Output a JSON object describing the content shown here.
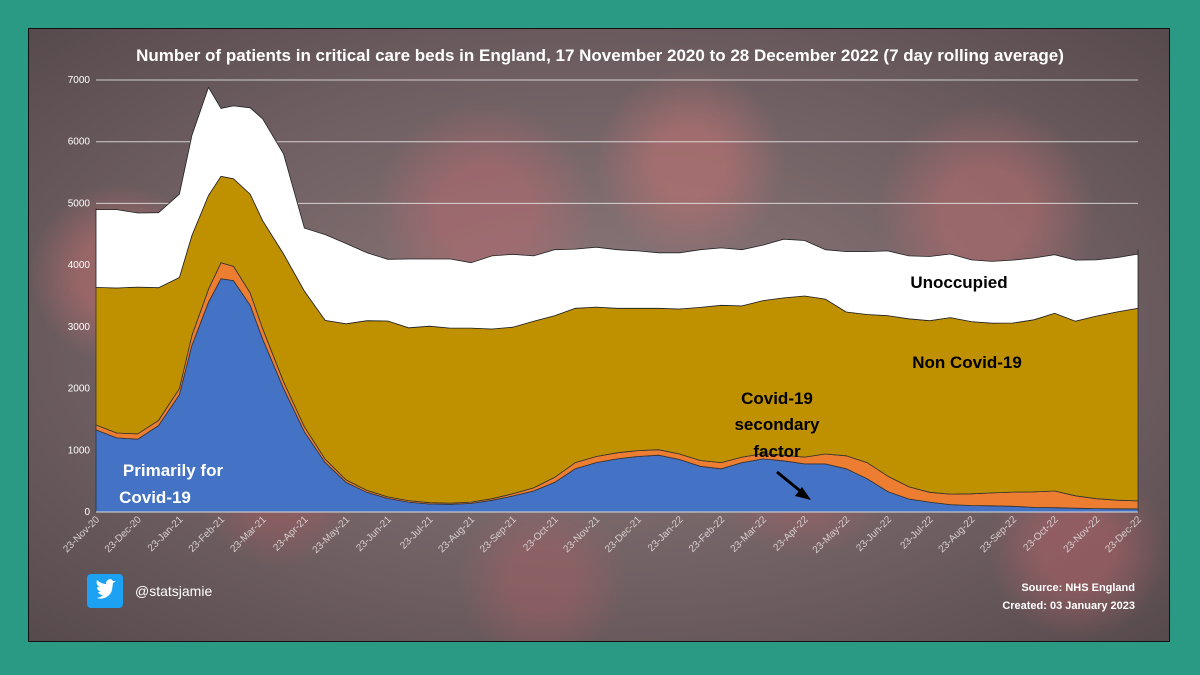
{
  "chart_data": {
    "type": "area",
    "title": "Number of patients in critical care beds in England, 17 November 2020 to 28 December 2022 (7 day rolling average)",
    "ylim": [
      0,
      7000
    ],
    "y_ticks": [
      0,
      1000,
      2000,
      3000,
      4000,
      5000,
      6000,
      7000
    ],
    "x_tick_labels": [
      "23-Nov-20",
      "23-Dec-20",
      "23-Jan-21",
      "23-Feb-21",
      "23-Mar-21",
      "23-Apr-21",
      "23-May-21",
      "23-Jun-21",
      "23-Jul-21",
      "23-Aug-21",
      "23-Sep-21",
      "23-Oct-21",
      "23-Nov-21",
      "23-Dec-21",
      "23-Jan-22",
      "23-Feb-22",
      "23-Mar-22",
      "23-Apr-22",
      "23-May-22",
      "23-Jun-22",
      "23-Jul-22",
      "23-Aug-22",
      "23-Sep-22",
      "23-Oct-22",
      "23-Nov-22",
      "23-Dec-22"
    ],
    "grid": "horizontal",
    "stacked": true,
    "x_months": [
      -0.2,
      0,
      0.5,
      1,
      1.5,
      2,
      2.3,
      2.7,
      3,
      3.3,
      3.7,
      4,
      4.5,
      5,
      5.5,
      6,
      6.5,
      7,
      7.5,
      8,
      8.5,
      9,
      9.5,
      10,
      10.5,
      11,
      11.5,
      12,
      12.5,
      13,
      13.5,
      14,
      14.5,
      15,
      15.5,
      16,
      16.5,
      17,
      17.5,
      18,
      18.5,
      19,
      19.5,
      20,
      20.5,
      21,
      21.5,
      22,
      22.5,
      23,
      23.5,
      24,
      24.5,
      25,
      25.2
    ],
    "series": [
      {
        "name": "Primarily for Covid-19",
        "color": "#4472c4",
        "values": [
          1380,
          1330,
          1200,
          1180,
          1400,
          1900,
          2700,
          3400,
          3780,
          3750,
          3350,
          2800,
          2000,
          1300,
          800,
          480,
          320,
          220,
          160,
          130,
          125,
          140,
          190,
          260,
          340,
          480,
          700,
          800,
          860,
          900,
          920,
          850,
          740,
          700,
          800,
          860,
          830,
          780,
          780,
          700,
          540,
          330,
          210,
          160,
          120,
          105,
          100,
          92,
          75,
          70,
          62,
          55,
          52,
          50,
          50
        ]
      },
      {
        "name": "Covid-19 secondary factor",
        "color": "#ed7d31",
        "values": [
          75,
          80,
          80,
          85,
          85,
          100,
          160,
          210,
          260,
          230,
          200,
          170,
          110,
          80,
          55,
          40,
          30,
          25,
          25,
          20,
          20,
          20,
          25,
          35,
          50,
          80,
          100,
          100,
          100,
          95,
          90,
          90,
          95,
          100,
          90,
          85,
          90,
          110,
          160,
          210,
          260,
          250,
          200,
          160,
          170,
          190,
          210,
          230,
          250,
          270,
          200,
          160,
          140,
          130,
          120
        ]
      },
      {
        "name": "Non Covid-19",
        "color": "#bf9000",
        "values": [
          2180,
          2230,
          2350,
          2380,
          2150,
          1800,
          1620,
          1520,
          1400,
          1420,
          1600,
          1750,
          2070,
          2200,
          2250,
          2530,
          2750,
          2850,
          2800,
          2860,
          2835,
          2820,
          2750,
          2700,
          2700,
          2620,
          2500,
          2420,
          2340,
          2305,
          2290,
          2350,
          2480,
          2550,
          2450,
          2480,
          2550,
          2610,
          2510,
          2330,
          2400,
          2600,
          2720,
          2780,
          2860,
          2790,
          2750,
          2740,
          2790,
          2880,
          2830,
          2960,
          3050,
          3120,
          3230
        ]
      },
      {
        "name": "Unoccupied",
        "color": "#ffffff",
        "values": [
          1285,
          1260,
          1270,
          1200,
          1215,
          1350,
          1620,
          1750,
          1100,
          1180,
          1400,
          1650,
          1620,
          1020,
          1390,
          1300,
          1100,
          1000,
          1115,
          1090,
          1120,
          1060,
          1185,
          1180,
          1060,
          1070,
          960,
          970,
          950,
          930,
          900,
          910,
          935,
          930,
          910,
          900,
          950,
          900,
          800,
          980,
          1020,
          1050,
          1020,
          1040,
          1030,
          1000,
          1000,
          1020,
          1000,
          950,
          990,
          910,
          880,
          880,
          850
        ]
      }
    ],
    "labels": {
      "primary": [
        "Primarily for",
        "Covid-19"
      ],
      "secondary": [
        "Covid-19",
        "secondary",
        "factor"
      ],
      "non_covid": "Non Covid-19",
      "unoccupied": "Unoccupied"
    }
  },
  "footer": {
    "handle": "@statsjamie",
    "source": "Source: NHS England",
    "created": "Created: 03 January 2023"
  },
  "icons": {
    "twitter": "twitter-bird-icon"
  }
}
